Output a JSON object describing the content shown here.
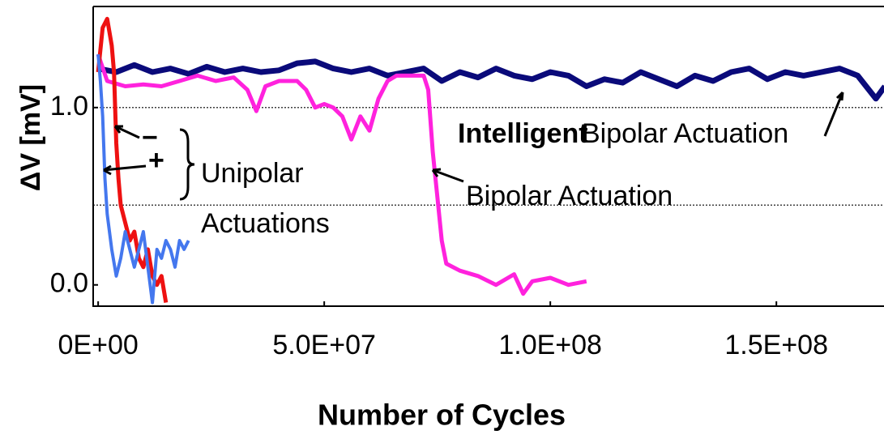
{
  "chart_data": {
    "type": "line",
    "x_label": "Number of Cycles",
    "y_label": "ΔV [mV]",
    "xlim": [
      -1100000.0,
      173800000.0
    ],
    "ylim": [
      -0.12,
      1.57
    ],
    "xticks": [
      {
        "value": 0,
        "label": "0E+00"
      },
      {
        "value": 50000000.0,
        "label": "5.0E+07"
      },
      {
        "value": 100000000.0,
        "label": "1.0E+08"
      },
      {
        "value": 150000000.0,
        "label": "1.5E+08"
      }
    ],
    "yticks": [
      {
        "value": 0,
        "label": "0.0"
      },
      {
        "value": 1,
        "label": "1.0"
      }
    ],
    "hlines": [
      1.0,
      0.45
    ],
    "annotations": [
      "Intelligent",
      "Bipolar Actuation",
      "Bipolar Actuation",
      "Unipolar",
      "Actuations",
      "−",
      "+"
    ],
    "series": [
      {
        "color": "#0a0a7a",
        "width": 7,
        "x": [
          0,
          4000000.0,
          8000000.0,
          12000000.0,
          16000000.0,
          20000000.0,
          24000000.0,
          28000000.0,
          32000000.0,
          36000000.0,
          40000000.0,
          44000000.0,
          48000000.0,
          52000000.0,
          56000000.0,
          60000000.0,
          64000000.0,
          68000000.0,
          72000000.0,
          76000000.0,
          80000000.0,
          84000000.0,
          88000000.0,
          92000000.0,
          96000000.0,
          100000000.0,
          104000000.0,
          108000000.0,
          112000000.0,
          116000000.0,
          120000000.0,
          124000000.0,
          128000000.0,
          132000000.0,
          136000000.0,
          140000000.0,
          144000000.0,
          148000000.0,
          152000000.0,
          156000000.0,
          160000000.0,
          164000000.0,
          168000000.0,
          172000000.0,
          174000000.0
        ],
        "values": [
          1.22,
          1.2,
          1.24,
          1.2,
          1.22,
          1.19,
          1.23,
          1.2,
          1.22,
          1.2,
          1.21,
          1.25,
          1.26,
          1.22,
          1.2,
          1.22,
          1.18,
          1.2,
          1.22,
          1.15,
          1.2,
          1.17,
          1.22,
          1.18,
          1.16,
          1.2,
          1.18,
          1.12,
          1.16,
          1.14,
          1.2,
          1.16,
          1.12,
          1.18,
          1.15,
          1.2,
          1.22,
          1.16,
          1.2,
          1.18,
          1.2,
          1.22,
          1.18,
          1.05,
          1.12
        ]
      },
      {
        "color": "#ff22dd",
        "width": 5,
        "x": [
          0,
          2000000.0,
          6000000.0,
          10000000.0,
          14000000.0,
          18000000.0,
          22000000.0,
          26000000.0,
          30000000.0,
          33000000.0,
          35000000.0,
          37000000.0,
          40000000.0,
          44000000.0,
          46000000.0,
          48000000.0,
          50000000.0,
          52000000.0,
          54000000.0,
          56000000.0,
          58000000.0,
          60000000.0,
          62000000.0,
          64000000.0,
          66000000.0,
          70000000.0,
          72000000.0,
          73000000.0,
          74000000.0,
          75000000.0,
          76000000.0,
          77000000.0,
          80000000.0,
          84000000.0,
          88000000.0,
          92000000.0,
          94000000.0,
          96000000.0,
          100000000.0,
          104000000.0,
          108000000.0
        ],
        "values": [
          1.3,
          1.15,
          1.12,
          1.13,
          1.12,
          1.15,
          1.18,
          1.15,
          1.17,
          1.1,
          0.98,
          1.12,
          1.15,
          1.15,
          1.1,
          1.0,
          1.02,
          1.0,
          0.95,
          0.82,
          0.95,
          0.87,
          1.05,
          1.15,
          1.18,
          1.18,
          1.18,
          1.1,
          0.75,
          0.5,
          0.25,
          0.12,
          0.08,
          0.05,
          0.0,
          0.06,
          -0.05,
          0.02,
          0.04,
          0.0,
          0.02
        ]
      },
      {
        "color": "#ee1111",
        "width": 5,
        "x": [
          0,
          1000000.0,
          2000000.0,
          3000000.0,
          3500000.0,
          4000000.0,
          4500000.0,
          5000000.0,
          6000000.0,
          7000000.0,
          8000000.0,
          9000000.0,
          10000000.0,
          11000000.0,
          12000000.0,
          13000000.0,
          14000000.0,
          15000000.0
        ],
        "values": [
          1.2,
          1.45,
          1.5,
          1.35,
          1.2,
          0.8,
          0.6,
          0.45,
          0.35,
          0.25,
          0.3,
          0.15,
          0.1,
          0.2,
          0.05,
          0.0,
          0.05,
          -0.1
        ]
      },
      {
        "color": "#4477ee",
        "width": 4,
        "x": [
          0,
          500000.0,
          1000000.0,
          1500000.0,
          2000000.0,
          3000000.0,
          4000000.0,
          5000000.0,
          6000000.0,
          7000000.0,
          8000000.0,
          9000000.0,
          10000000.0,
          11000000.0,
          12000000.0,
          13000000.0,
          14000000.0,
          15000000.0,
          16000000.0,
          17000000.0,
          18000000.0,
          19000000.0,
          20000000.0
        ],
        "values": [
          1.3,
          1.15,
          0.95,
          0.6,
          0.4,
          0.2,
          0.05,
          0.15,
          0.3,
          0.2,
          0.1,
          0.2,
          0.3,
          0.1,
          -0.1,
          0.2,
          0.15,
          0.25,
          0.2,
          0.1,
          0.25,
          0.2,
          0.25
        ]
      }
    ]
  }
}
